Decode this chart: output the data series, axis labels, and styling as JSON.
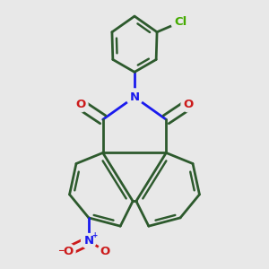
{
  "bg_color": "#e8e8e8",
  "bond_color": "#2d5a2d",
  "n_color": "#1a1aee",
  "o_color": "#cc1a1a",
  "cl_color": "#44aa00",
  "bond_width": 2.0,
  "figsize": [
    3.0,
    3.0
  ],
  "dpi": 100,
  "xlim": [
    -1.2,
    1.2
  ],
  "ylim": [
    -1.25,
    1.95
  ]
}
